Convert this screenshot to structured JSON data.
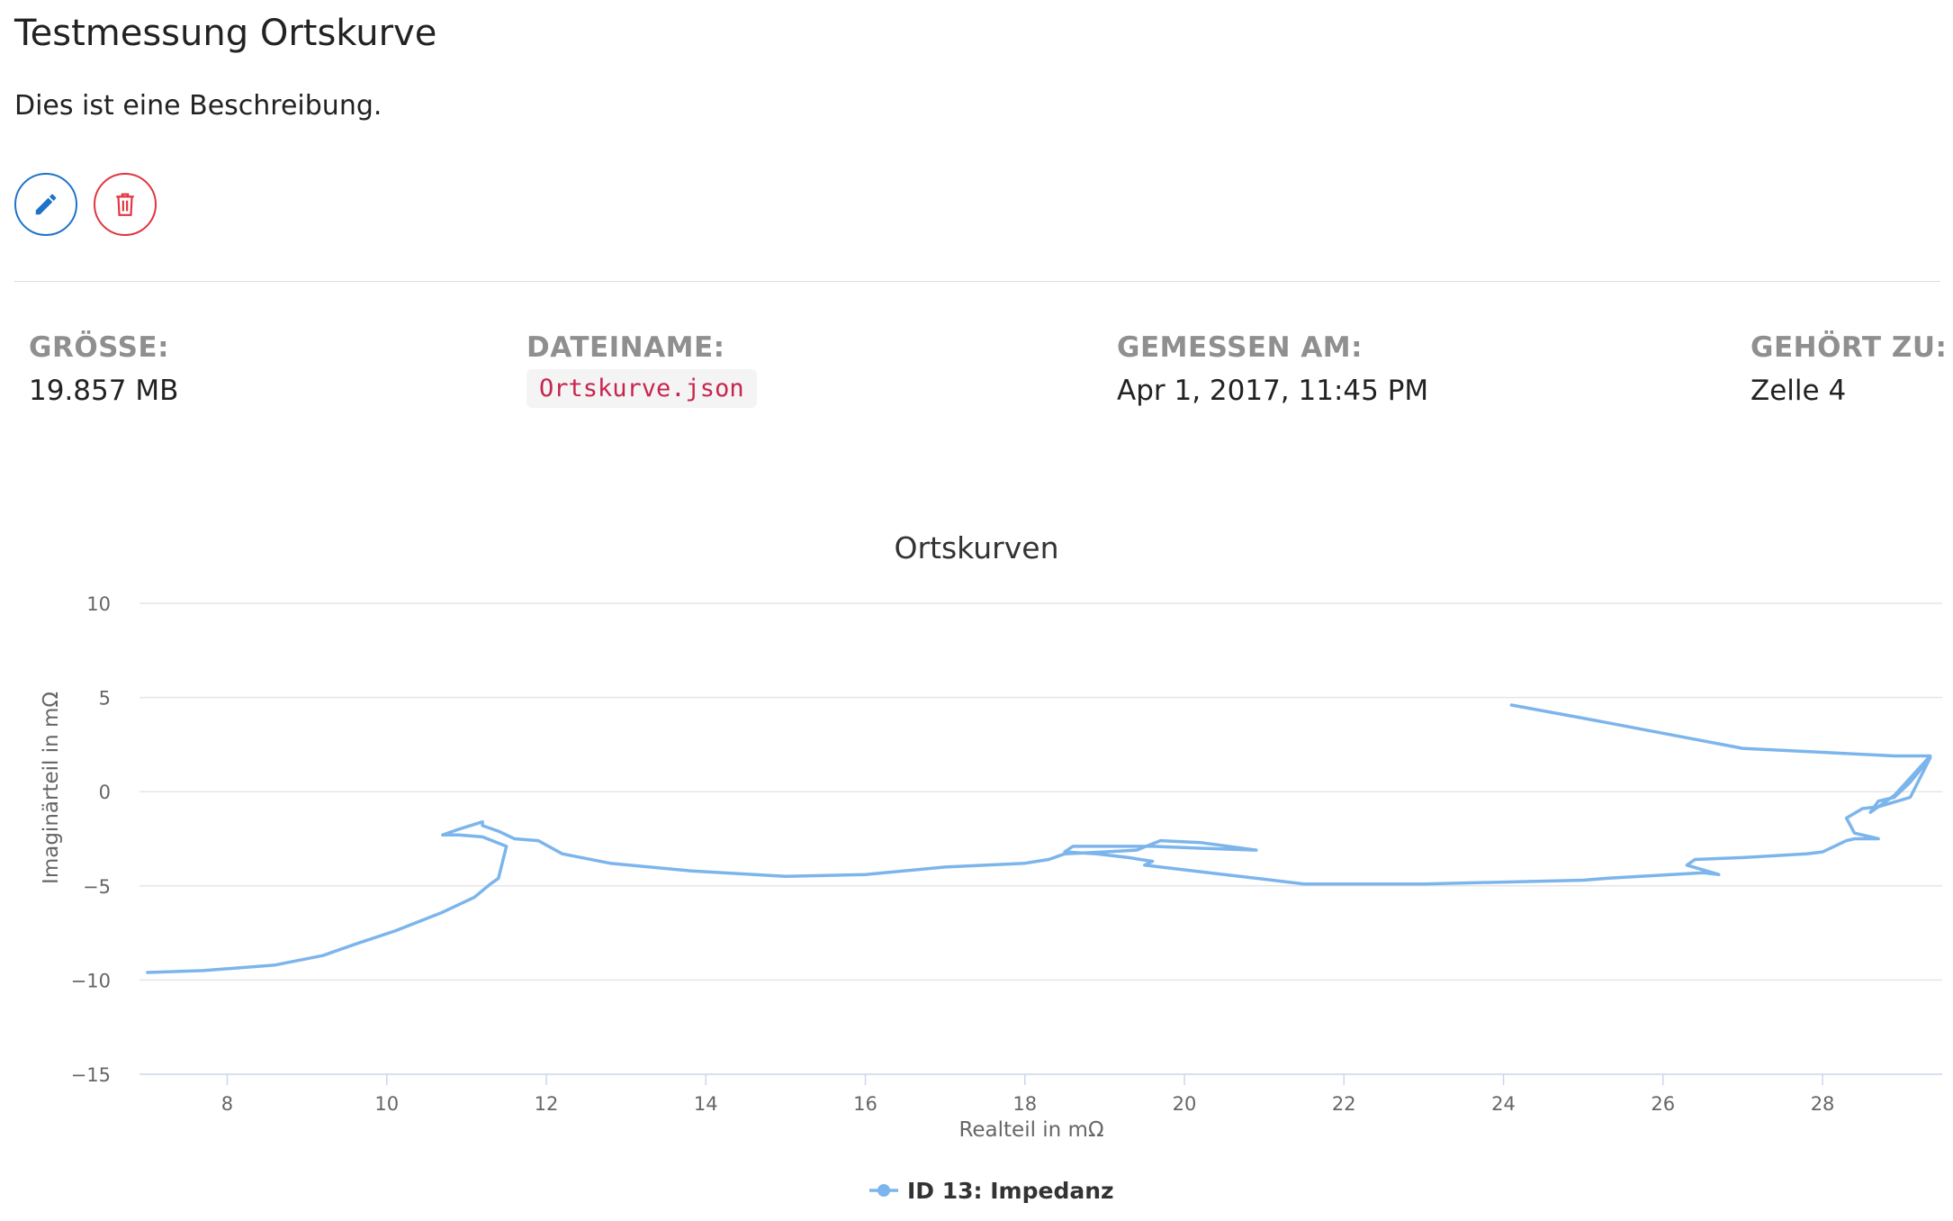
{
  "page": {
    "title": "Testmessung Ortskurve",
    "description": "Dies ist eine Beschreibung."
  },
  "actions": {
    "edit_icon": "pencil-icon",
    "delete_icon": "trash-icon",
    "edit_color": "#1e73c8",
    "delete_color": "#e0343f"
  },
  "meta": {
    "size_label": "GRÖSSE:",
    "size_value": "19.857 MB",
    "filename_label": "DATEINAME:",
    "filename_value": "Ortskurve.json",
    "measured_label": "GEMESSEN AM:",
    "measured_value": "Apr 1, 2017, 11:45 PM",
    "belongs_label": "GEHÖRT ZU:",
    "belongs_value": "Zelle 4"
  },
  "chart_data": {
    "type": "line",
    "title": "Ortskurven",
    "xlabel": "Realteil in mΩ",
    "ylabel": "Imaginärteil in mΩ",
    "xlim": [
      6.9,
      29.5
    ],
    "ylim": [
      -15,
      10
    ],
    "xticks": [
      8,
      10,
      12,
      14,
      16,
      18,
      20,
      22,
      24,
      26,
      28
    ],
    "yticks": [
      10,
      5,
      0,
      -5,
      -10,
      -15
    ],
    "ytick_labels": [
      "10",
      "5",
      "0",
      "−5",
      "−10",
      "−15"
    ],
    "grid": true,
    "legend_position": "bottom-center",
    "line_color": "#7cb5ec",
    "series": [
      {
        "name": "ID 13: Impedanz",
        "x": [
          7.0,
          7.7,
          8.6,
          9.2,
          9.6,
          10.1,
          10.7,
          11.1,
          11.3,
          11.4,
          11.5,
          11.2,
          10.9,
          10.7,
          10.9,
          11.2,
          11.2,
          11.4,
          11.6,
          11.9,
          12.2,
          12.8,
          13.8,
          15.0,
          16.0,
          17.0,
          18.0,
          18.3,
          18.5,
          19.0,
          19.4,
          19.7,
          20.2,
          20.9,
          20.2,
          19.6,
          19.0,
          18.6,
          18.5,
          18.9,
          19.3,
          19.6,
          19.5,
          19.7,
          20.5,
          21.5,
          23.0,
          25.0,
          25.3,
          26.5,
          26.7,
          26.3,
          26.4,
          27.0,
          27.8,
          28.0,
          28.3,
          28.4,
          28.7,
          28.4,
          28.3,
          28.5,
          28.7,
          29.1,
          29.35,
          29.1,
          28.9,
          28.7,
          28.6,
          28.9,
          29.35,
          28.9,
          27.0,
          25.0,
          24.1
        ],
        "y": [
          -9.6,
          -9.5,
          -9.2,
          -8.7,
          -8.1,
          -7.4,
          -6.4,
          -5.6,
          -4.9,
          -4.6,
          -2.9,
          -2.4,
          -2.3,
          -2.3,
          -2.0,
          -1.6,
          -1.8,
          -2.1,
          -2.5,
          -2.6,
          -3.3,
          -3.8,
          -4.2,
          -4.5,
          -4.4,
          -4.0,
          -3.8,
          -3.6,
          -3.3,
          -3.2,
          -3.1,
          -2.6,
          -2.7,
          -3.1,
          -3.0,
          -2.9,
          -2.9,
          -2.9,
          -3.2,
          -3.3,
          -3.5,
          -3.7,
          -3.9,
          -4.0,
          -4.4,
          -4.9,
          -4.9,
          -4.7,
          -4.6,
          -4.3,
          -4.4,
          -3.9,
          -3.6,
          -3.5,
          -3.3,
          -3.2,
          -2.6,
          -2.5,
          -2.5,
          -2.2,
          -1.4,
          -0.9,
          -0.8,
          -0.3,
          1.8,
          0.5,
          -0.3,
          -0.5,
          -1.1,
          -0.2,
          1.9,
          1.9,
          2.3,
          3.9,
          4.6
        ]
      }
    ]
  }
}
